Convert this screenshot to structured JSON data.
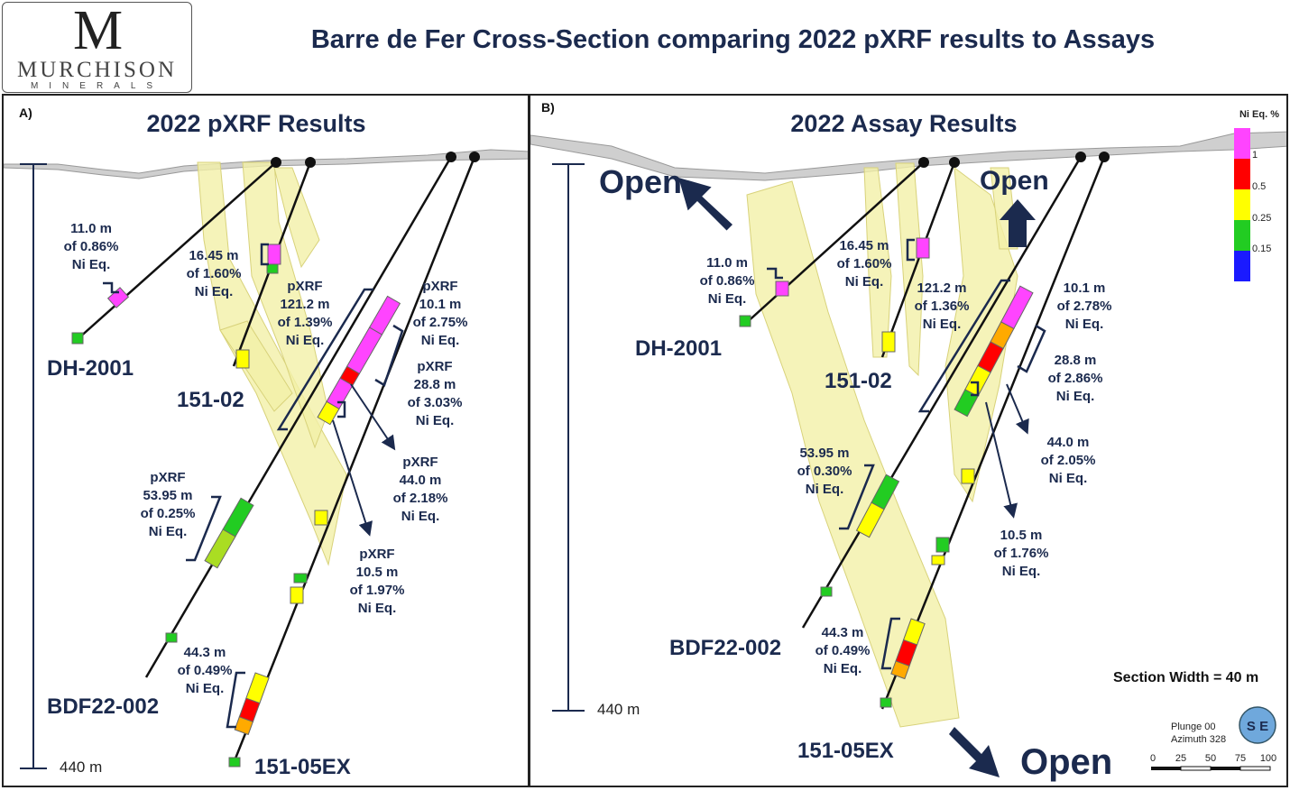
{
  "title": "Barre de Fer Cross-Section comparing 2022 pXRF results to Assays",
  "logo": {
    "mark": "M",
    "name": "MURCHISON",
    "sub": "MINERALS"
  },
  "panelA": {
    "tag": "A)",
    "title": "2022 pXRF Results",
    "scale_label": "440 m",
    "holes": {
      "dh2001": "DH-2001",
      "h15102": "151-02",
      "bdf": "BDF22-002",
      "h15105": "151-05EX"
    },
    "annotations": [
      [
        "11.0 m",
        "of 0.86%",
        "Ni Eq."
      ],
      [
        "16.45 m",
        "of 1.60%",
        "Ni Eq."
      ],
      [
        "pXRF",
        "121.2 m",
        "of 1.39%",
        "Ni Eq."
      ],
      [
        "pXRF",
        "10.1 m",
        "of 2.75%",
        "Ni Eq."
      ],
      [
        "pXRF",
        "28.8 m",
        "of 3.03%",
        "Ni Eq."
      ],
      [
        "pXRF",
        "44.0 m",
        "of 2.18%",
        "Ni Eq."
      ],
      [
        "pXRF",
        "53.95 m",
        "of 0.25%",
        "Ni Eq."
      ],
      [
        "pXRF",
        "10.5 m",
        "of 1.97%",
        "Ni Eq."
      ],
      [
        "44.3 m",
        "of 0.49%",
        "Ni Eq."
      ]
    ]
  },
  "panelB": {
    "tag": "B)",
    "title": "2022 Assay Results",
    "scale_label": "440 m",
    "holes": {
      "dh2001": "DH-2001",
      "h15102": "151-02",
      "bdf": "BDF22-002",
      "h15105": "151-05EX"
    },
    "open_labels": [
      "Open",
      "Open",
      "Open"
    ],
    "annotations": [
      [
        "11.0 m",
        "of 0.86%",
        "Ni Eq."
      ],
      [
        "16.45 m",
        "of 1.60%",
        "Ni Eq."
      ],
      [
        "121.2 m",
        "of 1.36%",
        "Ni Eq."
      ],
      [
        "10.1 m",
        "of 2.78%",
        "Ni Eq."
      ],
      [
        "28.8 m",
        "of 2.86%",
        "Ni Eq."
      ],
      [
        "44.0 m",
        "of 2.05%",
        "Ni Eq."
      ],
      [
        "53.95 m",
        "of 0.30%",
        "Ni Eq."
      ],
      [
        "10.5 m",
        "of 1.76%",
        "Ni Eq."
      ],
      [
        "44.3 m",
        "of 0.49%",
        "Ni Eq."
      ]
    ],
    "legend": {
      "title": "Ni Eq. %",
      "values": [
        "1",
        "0.5",
        "0.25",
        "0.15"
      ],
      "colors": [
        "#ff44ff",
        "#ff0000",
        "#ffff00",
        "#22cc22",
        "#1a1aff"
      ]
    },
    "section_width": "Section Width = 40 m",
    "plunge": "Plunge 00",
    "azimuth": "Azimuth 328",
    "scalebar": [
      "0",
      "25",
      "50",
      "75",
      "100"
    ],
    "badge": "S E"
  },
  "colors": {
    "navy": "#1b2a4e",
    "zone_fill": "#f3f0a8",
    "zone_stroke": "#d8d27a",
    "terrain": "#cfcfcf"
  }
}
